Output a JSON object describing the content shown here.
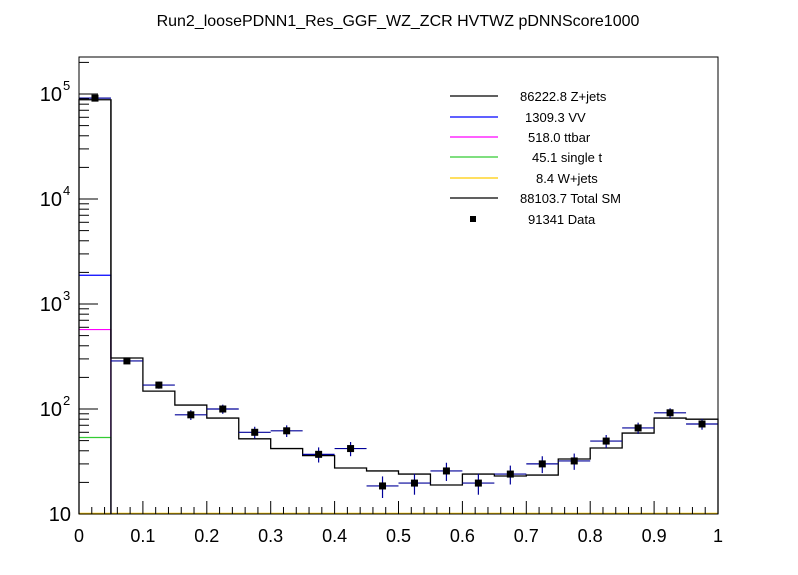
{
  "chart_data": {
    "type": "bar",
    "subtype": "stacked-histogram-with-data",
    "title": "Run2_loosePDNN1_Res_GGF_WZ_ZCR HVTWZ  pDNNScore1000",
    "xlabel": "",
    "ylabel": "",
    "xlim": [
      0,
      1
    ],
    "ylim": [
      10,
      225000
    ],
    "yscale": "log",
    "grid": false,
    "legend_placement": "top-right",
    "x_tick_labels": [
      "0",
      "0.1",
      "0.2",
      "0.3",
      "0.4",
      "0.5",
      "0.6",
      "0.7",
      "0.8",
      "0.9",
      "1"
    ],
    "y_tick_labels": [
      {
        "base": "10",
        "exp": ""
      },
      {
        "base": "10",
        "exp": "2"
      },
      {
        "base": "10",
        "exp": "3"
      },
      {
        "base": "10",
        "exp": "4"
      },
      {
        "base": "10",
        "exp": "5"
      }
    ],
    "bin_edges": [
      0,
      0.05,
      0.1,
      0.15,
      0.2,
      0.25,
      0.3,
      0.35,
      0.4,
      0.45,
      0.5,
      0.55,
      0.6,
      0.65,
      0.7,
      0.75,
      0.8,
      0.85,
      0.9,
      0.95,
      1.0
    ],
    "stack_tops_first_bin": [
      {
        "name": "VV",
        "value": 1880,
        "color": "#0000ff"
      },
      {
        "name": "ttbar",
        "value": 571,
        "color": "#ff00ff"
      },
      {
        "name": "single t",
        "value": 53.5,
        "color": "#33cc33"
      },
      {
        "name": "W+jets",
        "value": 8.4,
        "color": "#ffcc00"
      }
    ],
    "total_sm": [
      88104,
      306,
      148,
      109,
      82,
      52,
      42,
      36,
      27.4,
      25.7,
      24,
      18.9,
      24,
      23,
      23.5,
      33.4,
      42.5,
      59,
      82,
      80
    ],
    "data": [
      91341,
      287,
      169,
      88,
      100,
      60,
      62,
      37,
      42,
      18.5,
      19.7,
      25.7,
      19.7,
      24,
      30,
      32,
      49.5,
      66,
      92,
      72
    ],
    "legend": [
      {
        "label": "86222.8 Z+jets",
        "color": "#000000",
        "kind": "line"
      },
      {
        "label": "1309.3 VV",
        "color": "#0000ff",
        "kind": "line"
      },
      {
        "label": "518.0 ttbar",
        "color": "#ff00ff",
        "kind": "line"
      },
      {
        "label": "45.1 single t",
        "color": "#33cc33",
        "kind": "line"
      },
      {
        "label": "8.4 W+jets",
        "color": "#ffcc00",
        "kind": "line"
      },
      {
        "label": "88103.7 Total SM",
        "color": "#000000",
        "kind": "line"
      },
      {
        "label": "91341 Data",
        "color": "#000000",
        "kind": "marker"
      }
    ],
    "data_error_color": "#000099"
  }
}
